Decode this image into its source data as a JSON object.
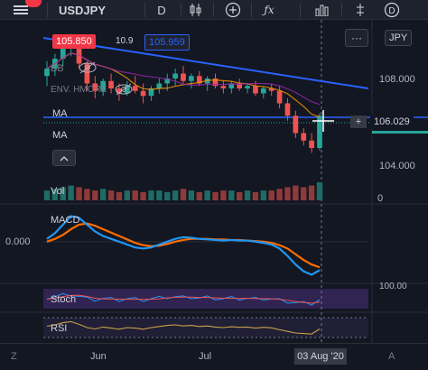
{
  "toolbar": {
    "menu_icon": "hamburger-icon",
    "symbol": "USDJPY",
    "interval": "D",
    "chart_type_icon": "candles-icon",
    "add_icon": "plus-circle-icon",
    "indicators_icon": "fx-icon",
    "layout_icon": "bar-chart-icon",
    "alert_icon": "alert-clock-icon",
    "replay_icon": "replay-icon",
    "dollar_icon": "dollar-circle-icon"
  },
  "price_labels": {
    "sell_price": "105.850",
    "spread": "10.9",
    "buy_price": "105.959",
    "current_price": "106.029",
    "currency": "JPY"
  },
  "legend": {
    "bb_label": "BB",
    "envelope_label": "ENV. HMORE",
    "ma1_label": "MA",
    "ma2_label": "MA",
    "volume_label": "Vol",
    "macd_label": "MACD",
    "stoch_label": "Stoch",
    "rsi_label": "RSI"
  },
  "price_axis": {
    "ticks": [
      "108.000",
      "104.000"
    ],
    "volume_tick": "0",
    "macd_tick": "0.000",
    "stoch_tick": "100.00"
  },
  "time_axis": {
    "labels": [
      "Jun",
      "Jul"
    ],
    "current_date": "03 Aug '20"
  },
  "colors": {
    "background": "#131722",
    "bull": "#26a69a",
    "bear": "#ef5350",
    "trendline": "#2962ff",
    "macd_line": "#2196f3",
    "signal_line": "#ff6d00",
    "stoch_fill": "#4a2d7a",
    "current_price_line": "#26a69a"
  },
  "chart_data": {
    "type": "candlestick",
    "title": "USDJPY",
    "interval": "D",
    "y_range": [
      103.5,
      109.5
    ],
    "candles": [
      {
        "o": 107.6,
        "h": 108.2,
        "l": 107.2,
        "c": 107.9
      },
      {
        "o": 107.9,
        "h": 108.5,
        "l": 107.6,
        "c": 108.3
      },
      {
        "o": 108.3,
        "h": 109.0,
        "l": 108.0,
        "c": 108.8
      },
      {
        "o": 108.8,
        "h": 109.3,
        "l": 108.4,
        "c": 109.1
      },
      {
        "o": 109.1,
        "h": 109.2,
        "l": 107.9,
        "c": 108.1
      },
      {
        "o": 108.1,
        "h": 108.2,
        "l": 107.0,
        "c": 107.3
      },
      {
        "o": 107.3,
        "h": 107.6,
        "l": 106.7,
        "c": 107.0
      },
      {
        "o": 107.0,
        "h": 107.5,
        "l": 106.8,
        "c": 107.4
      },
      {
        "o": 107.4,
        "h": 107.7,
        "l": 106.9,
        "c": 107.1
      },
      {
        "o": 107.1,
        "h": 107.3,
        "l": 106.6,
        "c": 106.9
      },
      {
        "o": 106.9,
        "h": 107.4,
        "l": 106.8,
        "c": 107.2
      },
      {
        "o": 107.2,
        "h": 107.6,
        "l": 106.9,
        "c": 107.0
      },
      {
        "o": 107.0,
        "h": 107.3,
        "l": 106.5,
        "c": 106.8
      },
      {
        "o": 106.8,
        "h": 107.2,
        "l": 106.6,
        "c": 107.1
      },
      {
        "o": 107.1,
        "h": 107.5,
        "l": 106.9,
        "c": 107.3
      },
      {
        "o": 107.3,
        "h": 107.7,
        "l": 107.0,
        "c": 107.5
      },
      {
        "o": 107.5,
        "h": 107.9,
        "l": 107.2,
        "c": 107.7
      },
      {
        "o": 107.7,
        "h": 108.0,
        "l": 107.3,
        "c": 107.4
      },
      {
        "o": 107.4,
        "h": 107.7,
        "l": 107.1,
        "c": 107.6
      },
      {
        "o": 107.6,
        "h": 107.8,
        "l": 107.2,
        "c": 107.3
      },
      {
        "o": 107.3,
        "h": 107.6,
        "l": 107.0,
        "c": 107.5
      },
      {
        "o": 107.5,
        "h": 107.7,
        "l": 107.1,
        "c": 107.2
      },
      {
        "o": 107.2,
        "h": 107.4,
        "l": 106.9,
        "c": 107.1
      },
      {
        "o": 107.1,
        "h": 107.4,
        "l": 106.9,
        "c": 107.3
      },
      {
        "o": 107.3,
        "h": 107.5,
        "l": 107.0,
        "c": 107.1
      },
      {
        "o": 107.1,
        "h": 107.3,
        "l": 106.9,
        "c": 107.2
      },
      {
        "o": 107.2,
        "h": 107.4,
        "l": 106.8,
        "c": 106.9
      },
      {
        "o": 106.9,
        "h": 107.2,
        "l": 106.7,
        "c": 107.1
      },
      {
        "o": 107.1,
        "h": 107.3,
        "l": 106.8,
        "c": 107.0
      },
      {
        "o": 107.0,
        "h": 107.2,
        "l": 106.3,
        "c": 106.5
      },
      {
        "o": 106.5,
        "h": 106.7,
        "l": 105.8,
        "c": 106.0
      },
      {
        "o": 106.0,
        "h": 106.2,
        "l": 105.1,
        "c": 105.3
      },
      {
        "o": 105.3,
        "h": 105.5,
        "l": 104.8,
        "c": 105.0
      },
      {
        "o": 105.0,
        "h": 105.3,
        "l": 104.5,
        "c": 104.7
      },
      {
        "o": 104.7,
        "h": 106.1,
        "l": 104.6,
        "c": 106.0
      }
    ],
    "volume": [
      6,
      7,
      8,
      9,
      8,
      7,
      6,
      7,
      6,
      5,
      6,
      6,
      5,
      6,
      6,
      5,
      6,
      7,
      6,
      5,
      6,
      5,
      6,
      6,
      5,
      6,
      5,
      6,
      6,
      7,
      8,
      9,
      8,
      9,
      11
    ],
    "macd": [
      0.05,
      0.15,
      0.3,
      0.45,
      0.42,
      0.3,
      0.18,
      0.1,
      0.05,
      0.0,
      -0.05,
      -0.1,
      -0.12,
      -0.1,
      -0.05,
      0.0,
      0.05,
      0.08,
      0.07,
      0.05,
      0.04,
      0.03,
      0.02,
      0.03,
      0.02,
      0.02,
      0.0,
      -0.02,
      -0.05,
      -0.12,
      -0.25,
      -0.4,
      -0.52,
      -0.58,
      -0.5
    ],
    "signal": [
      0.0,
      0.05,
      0.12,
      0.22,
      0.3,
      0.32,
      0.28,
      0.22,
      0.16,
      0.1,
      0.04,
      -0.02,
      -0.06,
      -0.08,
      -0.07,
      -0.04,
      0.0,
      0.03,
      0.05,
      0.05,
      0.05,
      0.04,
      0.04,
      0.03,
      0.03,
      0.02,
      0.01,
      0.0,
      -0.02,
      -0.06,
      -0.12,
      -0.22,
      -0.32,
      -0.4,
      -0.45
    ],
    "macd_ylim": [
      -0.7,
      0.6
    ],
    "rsi": [
      55,
      60,
      68,
      72,
      62,
      50,
      45,
      52,
      48,
      44,
      50,
      48,
      44,
      50,
      54,
      58,
      60,
      56,
      58,
      54,
      56,
      52,
      50,
      53,
      51,
      52,
      48,
      51,
      49,
      42,
      36,
      30,
      28,
      26,
      45
    ]
  }
}
